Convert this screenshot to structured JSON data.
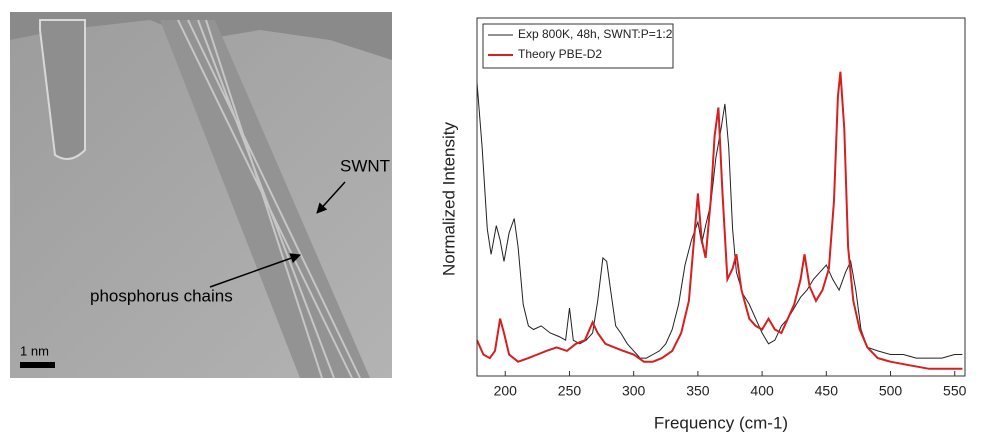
{
  "image": {
    "labels": [
      "SWNT",
      "phosphorus chains"
    ],
    "scale_bar": "1 nm"
  },
  "chart_data": {
    "type": "line",
    "x_label": "Frequency (cm-1)",
    "y_label": "Normalized Intensity",
    "xlim": [
      178,
      558
    ],
    "ylim": [
      0,
      1
    ],
    "xticks": [
      200,
      250,
      300,
      350,
      400,
      450,
      500,
      550
    ],
    "legend": "top-left",
    "series": [
      {
        "name": "Exp 800K, 48h, SWNT:P=1:2",
        "color": "#222222",
        "x": [
          178,
          182,
          186,
          189,
          193,
          196,
          199,
          203,
          207,
          210,
          214,
          218,
          222,
          228,
          235,
          242,
          247,
          250,
          253,
          258,
          263,
          268,
          272,
          276,
          279,
          282,
          286,
          290,
          295,
          300,
          305,
          310,
          315,
          320,
          325,
          330,
          335,
          340,
          345,
          350,
          353,
          356,
          360,
          364,
          368,
          371,
          374,
          377,
          380,
          385,
          390,
          395,
          400,
          405,
          410,
          415,
          420,
          425,
          430,
          435,
          440,
          445,
          450,
          455,
          460,
          465,
          469,
          473,
          477,
          482,
          490,
          500,
          510,
          520,
          530,
          540,
          550,
          556
        ],
        "values": [
          0.82,
          0.64,
          0.41,
          0.34,
          0.42,
          0.38,
          0.32,
          0.4,
          0.44,
          0.36,
          0.2,
          0.14,
          0.13,
          0.14,
          0.12,
          0.11,
          0.1,
          0.19,
          0.1,
          0.09,
          0.1,
          0.12,
          0.21,
          0.33,
          0.32,
          0.24,
          0.14,
          0.12,
          0.09,
          0.07,
          0.05,
          0.05,
          0.06,
          0.07,
          0.09,
          0.13,
          0.2,
          0.31,
          0.38,
          0.43,
          0.37,
          0.42,
          0.48,
          0.61,
          0.69,
          0.76,
          0.64,
          0.41,
          0.29,
          0.23,
          0.2,
          0.16,
          0.12,
          0.09,
          0.1,
          0.14,
          0.16,
          0.19,
          0.22,
          0.24,
          0.27,
          0.29,
          0.31,
          0.27,
          0.24,
          0.29,
          0.32,
          0.24,
          0.13,
          0.08,
          0.07,
          0.06,
          0.06,
          0.05,
          0.05,
          0.05,
          0.06,
          0.06
        ]
      },
      {
        "name": "Theory PBE-D2",
        "color": "#d42020",
        "x": [
          178,
          183,
          188,
          192,
          196,
          199,
          203,
          210,
          218,
          225,
          232,
          240,
          248,
          255,
          262,
          268,
          272,
          278,
          285,
          292,
          300,
          308,
          315,
          322,
          330,
          337,
          343,
          347,
          350,
          353,
          356,
          360,
          363,
          366,
          369,
          373,
          377,
          380,
          384,
          390,
          395,
          400,
          405,
          410,
          415,
          420,
          425,
          430,
          433,
          437,
          442,
          447,
          452,
          456,
          459,
          461,
          464,
          467,
          471,
          476,
          482,
          490,
          500,
          515,
          530,
          545,
          556
        ],
        "values": [
          0.1,
          0.06,
          0.05,
          0.07,
          0.16,
          0.12,
          0.06,
          0.04,
          0.05,
          0.06,
          0.07,
          0.08,
          0.07,
          0.09,
          0.1,
          0.15,
          0.12,
          0.09,
          0.08,
          0.07,
          0.06,
          0.04,
          0.04,
          0.05,
          0.07,
          0.12,
          0.21,
          0.38,
          0.51,
          0.38,
          0.33,
          0.49,
          0.67,
          0.75,
          0.52,
          0.27,
          0.3,
          0.34,
          0.24,
          0.16,
          0.14,
          0.13,
          0.16,
          0.13,
          0.12,
          0.16,
          0.2,
          0.27,
          0.34,
          0.25,
          0.21,
          0.24,
          0.3,
          0.49,
          0.78,
          0.85,
          0.69,
          0.36,
          0.21,
          0.13,
          0.08,
          0.05,
          0.04,
          0.03,
          0.02,
          0.02,
          0.02
        ]
      }
    ]
  }
}
